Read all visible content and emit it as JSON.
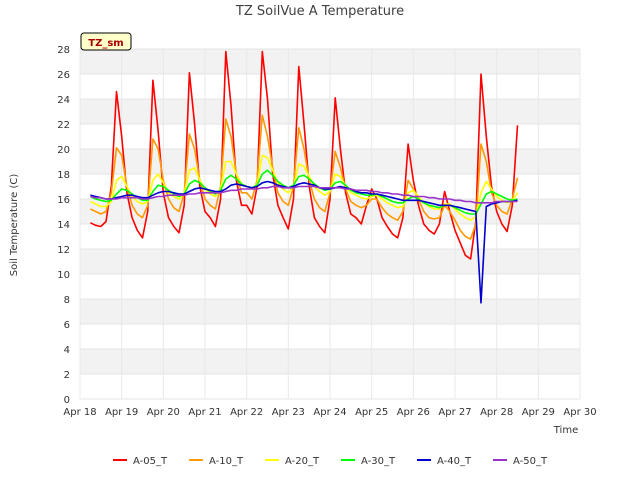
{
  "chart_data": {
    "type": "line",
    "title": "TZ SoilVue A Temperature",
    "tag_label": "TZ_sm",
    "xlabel": "Time",
    "ylabel": "Soil Temperature (C)",
    "ylim": [
      0,
      28
    ],
    "yticks": [
      0,
      2,
      4,
      6,
      8,
      10,
      12,
      14,
      16,
      18,
      20,
      22,
      24,
      26,
      28
    ],
    "xlim": [
      "Apr 18",
      "Apr 30"
    ],
    "xticks": [
      "Apr 18",
      "Apr 19",
      "Apr 20",
      "Apr 21",
      "Apr 22",
      "Apr 23",
      "Apr 24",
      "Apr 25",
      "Apr 26",
      "Apr 27",
      "Apr 28",
      "Apr 29",
      "Apr 30"
    ],
    "grid": "horizontal bands",
    "legend_position": "bottom",
    "series": [
      {
        "name": "A-05_T",
        "color": "#ff0000",
        "start": "Apr 18 06:00",
        "step_hours": 3,
        "values": [
          14.1,
          13.9,
          13.8,
          14.2,
          17.0,
          24.6,
          21.0,
          16.5,
          14.5,
          13.5,
          12.9,
          15.0,
          25.5,
          21.5,
          16.5,
          14.5,
          13.8,
          13.3,
          15.5,
          26.1,
          22.0,
          17.0,
          15.0,
          14.5,
          13.8,
          16.0,
          27.8,
          23.5,
          17.5,
          15.5,
          15.5,
          14.8,
          17.0,
          27.8,
          24.0,
          18.0,
          15.5,
          14.5,
          13.6,
          16.0,
          26.6,
          22.0,
          17.0,
          14.5,
          13.8,
          13.3,
          16.0,
          24.1,
          20.0,
          16.5,
          14.8,
          14.5,
          14.0,
          15.5,
          16.8,
          16.0,
          14.5,
          13.8,
          13.2,
          12.9,
          14.5,
          20.4,
          17.5,
          15.5,
          14.0,
          13.5,
          13.2,
          14.0,
          16.6,
          15.0,
          13.5,
          12.5,
          11.5,
          11.2,
          14.2,
          26.0,
          21.0,
          17.0,
          15.0,
          14.0,
          13.4,
          15.5,
          21.9
        ]
      },
      {
        "name": "A-10_T",
        "color": "#ff9900",
        "start": "Apr 18 06:00",
        "step_hours": 3,
        "values": [
          15.2,
          15.0,
          14.8,
          15.0,
          16.5,
          20.1,
          19.5,
          17.0,
          15.5,
          14.8,
          14.5,
          15.5,
          20.8,
          20.0,
          17.5,
          16.0,
          15.3,
          15.0,
          16.5,
          21.2,
          20.0,
          17.5,
          16.0,
          15.5,
          15.2,
          17.0,
          22.4,
          21.0,
          18.0,
          16.5,
          16.5,
          16.0,
          17.5,
          22.7,
          21.0,
          18.5,
          16.5,
          15.8,
          15.5,
          17.0,
          21.7,
          20.0,
          17.5,
          16.0,
          15.3,
          15.0,
          16.5,
          19.8,
          18.5,
          16.8,
          15.8,
          15.5,
          15.3,
          15.5,
          16.0,
          16.0,
          15.3,
          14.8,
          14.5,
          14.3,
          15.0,
          17.5,
          16.8,
          16.0,
          15.0,
          14.5,
          14.4,
          14.5,
          15.5,
          15.0,
          14.3,
          13.5,
          13.0,
          12.8,
          14.0,
          20.4,
          19.0,
          16.5,
          15.5,
          15.0,
          14.8,
          16.0,
          17.7
        ]
      },
      {
        "name": "A-20_T",
        "color": "#ffff00",
        "start": "Apr 18 06:00",
        "step_hours": 3,
        "values": [
          15.8,
          15.6,
          15.4,
          15.4,
          15.8,
          17.5,
          17.8,
          17.0,
          16.2,
          15.8,
          15.6,
          15.8,
          17.5,
          18.0,
          17.3,
          16.5,
          16.2,
          16.0,
          16.5,
          18.3,
          18.5,
          17.5,
          16.8,
          16.4,
          16.2,
          16.8,
          19.0,
          19.0,
          18.0,
          17.2,
          17.0,
          16.8,
          17.2,
          19.5,
          19.3,
          18.3,
          17.3,
          16.8,
          16.5,
          17.0,
          18.8,
          18.6,
          17.8,
          17.0,
          16.6,
          16.3,
          16.6,
          18.0,
          17.8,
          17.0,
          16.5,
          16.3,
          16.1,
          16.0,
          16.2,
          16.3,
          16.0,
          15.7,
          15.5,
          15.3,
          15.4,
          16.5,
          16.7,
          16.2,
          15.7,
          15.4,
          15.2,
          15.2,
          15.6,
          15.6,
          15.2,
          14.8,
          14.5,
          14.3,
          14.6,
          16.5,
          17.4,
          16.8,
          16.2,
          15.9,
          15.7,
          15.9,
          16.5
        ]
      },
      {
        "name": "A-30_T",
        "color": "#00ff00",
        "start": "Apr 18 06:00",
        "step_hours": 3,
        "values": [
          16.2,
          16.0,
          15.9,
          15.8,
          15.9,
          16.4,
          16.8,
          16.7,
          16.4,
          16.1,
          15.9,
          15.9,
          16.6,
          17.1,
          17.0,
          16.7,
          16.4,
          16.2,
          16.4,
          17.2,
          17.5,
          17.3,
          16.9,
          16.6,
          16.4,
          16.7,
          17.6,
          17.9,
          17.6,
          17.2,
          17.0,
          16.9,
          17.1,
          18.0,
          18.3,
          17.9,
          17.4,
          17.1,
          16.9,
          17.1,
          17.8,
          17.9,
          17.6,
          17.2,
          16.9,
          16.7,
          16.8,
          17.3,
          17.4,
          17.1,
          16.7,
          16.5,
          16.4,
          16.3,
          16.3,
          16.4,
          16.2,
          16.0,
          15.8,
          15.7,
          15.7,
          16.0,
          16.2,
          16.0,
          15.7,
          15.5,
          15.4,
          15.3,
          15.5,
          15.5,
          15.3,
          15.1,
          14.9,
          14.8,
          14.8,
          15.6,
          16.4,
          16.6,
          16.4,
          16.2,
          16.0,
          15.9,
          16.0
        ]
      },
      {
        "name": "A-40_T",
        "color": "#0000cc",
        "start": "Apr 18 06:00",
        "step_hours": 3,
        "values": [
          16.3,
          16.2,
          16.1,
          16.0,
          16.0,
          16.1,
          16.2,
          16.3,
          16.3,
          16.2,
          16.1,
          16.1,
          16.3,
          16.5,
          16.6,
          16.6,
          16.5,
          16.4,
          16.4,
          16.6,
          16.8,
          16.9,
          16.8,
          16.7,
          16.6,
          16.6,
          16.8,
          17.1,
          17.2,
          17.1,
          17.0,
          16.9,
          17.0,
          17.3,
          17.4,
          17.3,
          17.1,
          17.0,
          16.9,
          17.0,
          17.2,
          17.3,
          17.2,
          17.1,
          16.9,
          16.8,
          16.8,
          16.9,
          17.0,
          16.9,
          16.8,
          16.6,
          16.5,
          16.5,
          16.4,
          16.4,
          16.3,
          16.2,
          16.1,
          16.0,
          15.9,
          15.9,
          15.9,
          15.9,
          15.8,
          15.7,
          15.6,
          15.5,
          15.5,
          15.5,
          15.4,
          15.3,
          15.2,
          15.1,
          15.0,
          7.7,
          15.4,
          15.6,
          15.7,
          15.8,
          15.8,
          15.8,
          15.9
        ]
      },
      {
        "name": "A-50_T",
        "color": "#9933cc",
        "start": "Apr 18 06:00",
        "step_hours": 3,
        "values": [
          16.2,
          16.1,
          16.1,
          16.0,
          16.0,
          16.0,
          16.1,
          16.1,
          16.1,
          16.1,
          16.0,
          16.0,
          16.1,
          16.2,
          16.2,
          16.3,
          16.3,
          16.3,
          16.3,
          16.4,
          16.4,
          16.5,
          16.5,
          16.5,
          16.5,
          16.5,
          16.6,
          16.7,
          16.7,
          16.8,
          16.8,
          16.8,
          16.8,
          16.9,
          16.9,
          17.0,
          17.0,
          16.9,
          16.9,
          16.9,
          17.0,
          17.0,
          17.0,
          17.0,
          16.9,
          16.9,
          16.9,
          16.9,
          16.9,
          16.8,
          16.8,
          16.7,
          16.7,
          16.7,
          16.6,
          16.6,
          16.5,
          16.5,
          16.4,
          16.4,
          16.3,
          16.3,
          16.2,
          16.2,
          16.2,
          16.1,
          16.1,
          16.0,
          16.0,
          16.0,
          15.9,
          15.9,
          15.8,
          15.8,
          15.7,
          15.7,
          15.7,
          15.7,
          15.8,
          15.8,
          15.8,
          15.8,
          15.8
        ]
      }
    ]
  }
}
